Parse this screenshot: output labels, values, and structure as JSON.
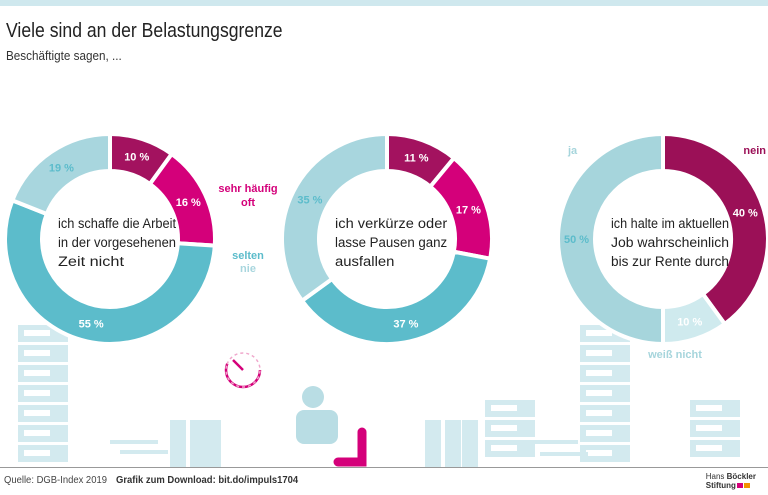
{
  "header": {
    "title": "Viele sind an der Belastungsgrenze",
    "subtitle": "Beschäftigte sagen, ..."
  },
  "chart_data": [
    {
      "type": "pie",
      "donut": true,
      "center_text": "ich schaffe die Arbeit in der vorgesehenen Zeit nicht",
      "center_lines": [
        "ich schaffe die Arbeit",
        "in der vorgesehenen",
        "Zeit nicht"
      ],
      "categories": [
        "sehr häufig",
        "oft",
        "selten",
        "nie"
      ],
      "values": [
        10,
        16,
        55,
        19
      ],
      "colors": [
        "#a3125f",
        "#d4007a",
        "#5cbccb",
        "#a8d6de"
      ],
      "label_colors": [
        "#ffffff",
        "#ffffff",
        "#ffffff",
        "#5cbccb"
      ],
      "value_labels": [
        "10 %",
        "16 %",
        "55 %",
        "19 %"
      ]
    },
    {
      "type": "pie",
      "donut": true,
      "center_text": "ich verkürze oder lasse Pausen ganz ausfallen",
      "center_lines": [
        "ich verkürze oder",
        "lasse Pausen ganz",
        "ausfallen"
      ],
      "categories": [
        "sehr häufig",
        "oft",
        "selten",
        "nie"
      ],
      "values": [
        11,
        17,
        37,
        35
      ],
      "colors": [
        "#a3125f",
        "#d4007a",
        "#5cbccb",
        "#a8d6de"
      ],
      "label_colors": [
        "#ffffff",
        "#ffffff",
        "#ffffff",
        "#5cbccb"
      ],
      "value_labels": [
        "11 %",
        "17 %",
        "37 %",
        "35 %"
      ]
    },
    {
      "type": "pie",
      "donut": true,
      "center_text": "ich halte im aktuellen Job wahrscheinlich bis zur Rente durch",
      "center_lines": [
        "ich halte im aktuellen",
        "Job wahrscheinlich",
        "bis zur Rente durch"
      ],
      "categories": [
        "nein",
        "weiß nicht",
        "ja"
      ],
      "values": [
        40,
        10,
        50
      ],
      "colors": [
        "#9b1057",
        "#cfeaee",
        "#a6d5dc"
      ],
      "label_colors": [
        "#ffffff",
        "#ffffff",
        "#5cbccb"
      ],
      "value_labels": [
        "40 %",
        "10 %",
        "50 %"
      ]
    }
  ],
  "legend": {
    "sehr_haeufig": "sehr häufig",
    "oft": "oft",
    "selten": "selten",
    "nie": "nie",
    "ja": "ja",
    "nein": "nein",
    "weiss_nicht": "weiß nicht"
  },
  "footer": {
    "source": "Quelle: DGB-Index 2019",
    "download": "Grafik zum Download: bit.do/impuls1704",
    "logo": "Hans Böckler Stiftung"
  }
}
